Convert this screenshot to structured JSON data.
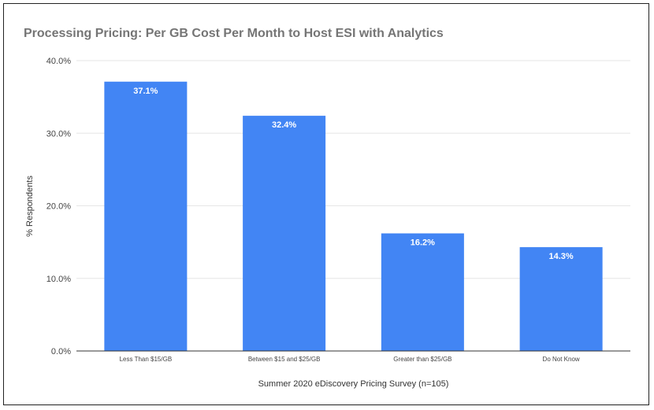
{
  "chart_data": {
    "type": "bar",
    "title": "Processing Pricing: Per GB Cost Per Month to Host ESI with Analytics",
    "xlabel": "Summer 2020 eDiscovery Pricing Survey (n=105)",
    "ylabel": "% Respondents",
    "categories": [
      "Less Than $15/GB",
      "Between $15 and $25/GB",
      "Greater than $25/GB",
      "Do Not Know"
    ],
    "values": [
      37.1,
      32.4,
      16.2,
      14.3
    ],
    "value_labels": [
      "37.1%",
      "32.4%",
      "16.2%",
      "14.3%"
    ],
    "yticks": [
      0,
      10,
      20,
      30,
      40
    ],
    "ytick_labels": [
      "0.0%",
      "10.0%",
      "20.0%",
      "30.0%",
      "40.0%"
    ],
    "ylim": [
      0,
      40
    ],
    "grid": true,
    "bar_color": "#4285F4"
  }
}
